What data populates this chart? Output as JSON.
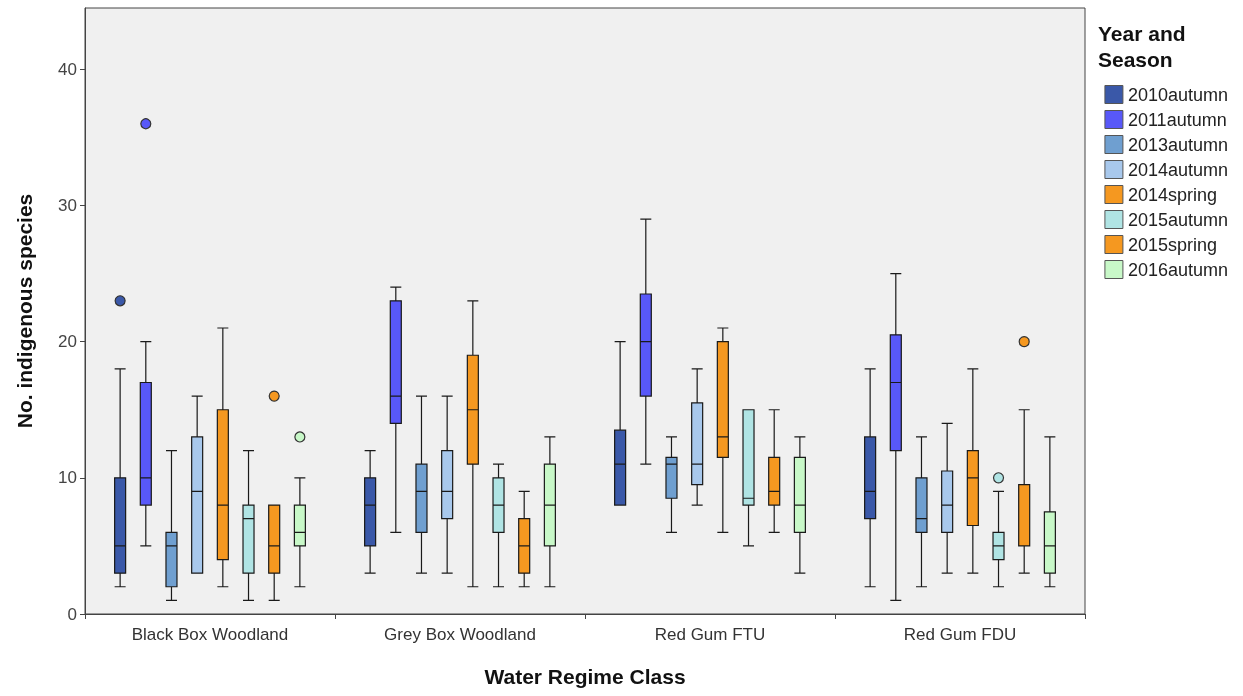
{
  "chart_data": {
    "type": "box",
    "xlabel": "Water Regime Class",
    "ylabel": "No. indigenous species",
    "legend_title": "Year and Season",
    "legend": "right",
    "grid": false,
    "categories": [
      "Black Box Woodland",
      "Grey Box Woodland",
      "Red Gum FTU",
      "Red Gum FDU"
    ],
    "ylim": [
      0,
      44.5
    ],
    "yticks": [
      0,
      10,
      20,
      30,
      40
    ],
    "series": [
      {
        "name": "2010autumn",
        "color": "#3a58a8",
        "boxes": [
          {
            "low": 2,
            "q1": 3,
            "median": 5,
            "q3": 10,
            "high": 18,
            "outliers": [
              23
            ]
          },
          {
            "low": 3,
            "q1": 5,
            "median": 8,
            "q3": 10,
            "high": 12
          },
          {
            "low": 8,
            "q1": 8,
            "median": 11,
            "q3": 13.5,
            "high": 20
          },
          {
            "low": 2,
            "q1": 7,
            "median": 9,
            "q3": 13,
            "high": 18
          }
        ]
      },
      {
        "name": "2011autumn",
        "color": "#5858f8",
        "boxes": [
          {
            "low": 5,
            "q1": 8,
            "median": 10,
            "q3": 17,
            "high": 20,
            "outliers": [
              36
            ]
          },
          {
            "low": 6,
            "q1": 14,
            "median": 16,
            "q3": 23,
            "high": 24
          },
          {
            "low": 11,
            "q1": 16,
            "median": 20,
            "q3": 23.5,
            "high": 29
          },
          {
            "low": 1,
            "q1": 12,
            "median": 17,
            "q3": 20.5,
            "high": 25
          }
        ]
      },
      {
        "name": "2013autumn",
        "color": "#6f9fd0",
        "boxes": [
          {
            "low": 1,
            "q1": 2,
            "median": 5,
            "q3": 6,
            "high": 12
          },
          {
            "low": 3,
            "q1": 6,
            "median": 9,
            "q3": 11,
            "high": 16
          },
          {
            "low": 6,
            "q1": 8.5,
            "median": 11,
            "q3": 11.5,
            "high": 13
          },
          {
            "low": 2,
            "q1": 6,
            "median": 7,
            "q3": 10,
            "high": 13
          }
        ]
      },
      {
        "name": "2014autumn",
        "color": "#a8c8ec",
        "boxes": [
          {
            "low": 3,
            "q1": 3,
            "median": 9,
            "q3": 13,
            "high": 16
          },
          {
            "low": 3,
            "q1": 7,
            "median": 9,
            "q3": 12,
            "high": 16
          },
          {
            "low": 8,
            "q1": 9.5,
            "median": 11,
            "q3": 15.5,
            "high": 18
          },
          {
            "low": 3,
            "q1": 6,
            "median": 8,
            "q3": 10.5,
            "high": 14
          }
        ]
      },
      {
        "name": "2014spring",
        "color": "#f59820",
        "boxes": [
          {
            "low": 2,
            "q1": 4,
            "median": 8,
            "q3": 15,
            "high": 21
          },
          {
            "low": 2,
            "q1": 11,
            "median": 15,
            "q3": 19,
            "high": 23
          },
          {
            "low": 6,
            "q1": 11.5,
            "median": 13,
            "q3": 20,
            "high": 21
          },
          {
            "low": 3,
            "q1": 6.5,
            "median": 10,
            "q3": 12,
            "high": 18
          }
        ]
      },
      {
        "name": "2015autumn",
        "color": "#b0e4e4",
        "boxes": [
          {
            "low": 1,
            "q1": 3,
            "median": 7,
            "q3": 8,
            "high": 12
          },
          {
            "low": 2,
            "q1": 6,
            "median": 8,
            "q3": 10,
            "high": 11
          },
          {
            "low": 5,
            "q1": 8,
            "median": 8.5,
            "q3": 15,
            "high": 15
          },
          {
            "low": 2,
            "q1": 4,
            "median": 5,
            "q3": 6,
            "high": 9,
            "outliers": [
              10
            ]
          }
        ]
      },
      {
        "name": "2015spring",
        "color": "#f59820",
        "boxes": [
          {
            "low": 1,
            "q1": 3,
            "median": 5,
            "q3": 8,
            "high": 8,
            "outliers": [
              16
            ]
          },
          {
            "low": 2,
            "q1": 3,
            "median": 5,
            "q3": 7,
            "high": 9
          },
          {
            "low": 6,
            "q1": 8,
            "median": 9,
            "q3": 11.5,
            "high": 15
          },
          {
            "low": 3,
            "q1": 5,
            "median": 5,
            "q3": 9.5,
            "high": 15,
            "outliers": [
              20
            ]
          }
        ]
      },
      {
        "name": "2016autumn",
        "color": "#c8f8c8",
        "boxes": [
          {
            "low": 2,
            "q1": 5,
            "median": 6,
            "q3": 8,
            "high": 10,
            "outliers": [
              13
            ]
          },
          {
            "low": 2,
            "q1": 5,
            "median": 8,
            "q3": 11,
            "high": 13
          },
          {
            "low": 3,
            "q1": 6,
            "median": 8,
            "q3": 11.5,
            "high": 13
          },
          {
            "low": 2,
            "q1": 3,
            "median": 5,
            "q3": 7.5,
            "high": 13
          }
        ]
      }
    ]
  }
}
